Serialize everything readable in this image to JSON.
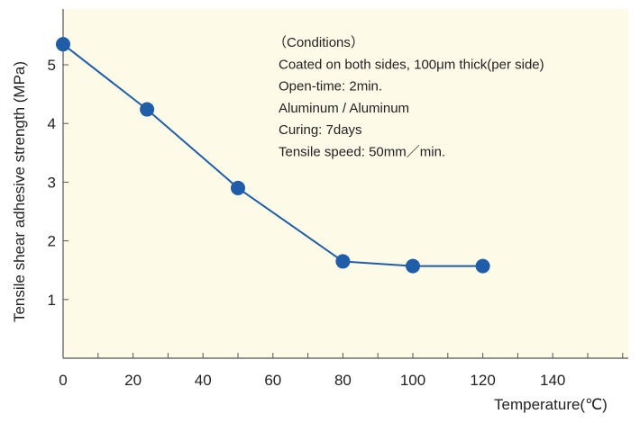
{
  "chart_data": {
    "type": "line",
    "xlabel": "Temperature(℃)",
    "ylabel": "Tensile shear adhesive strength (MPa)",
    "xlim": [
      0,
      160
    ],
    "ylim": [
      0,
      6
    ],
    "x_ticks": [
      "0",
      "20",
      "40",
      "60",
      "80",
      "100",
      "120",
      "140"
    ],
    "y_ticks": [
      "1",
      "2",
      "3",
      "4",
      "5"
    ],
    "series": [
      {
        "x": [
          0,
          24,
          50,
          80,
          100,
          120
        ],
        "y": [
          5.35,
          4.24,
          2.9,
          1.65,
          1.57,
          1.57
        ],
        "color": "#1f5da8"
      }
    ],
    "annotation": [
      "（Conditions）",
      "Coated on both sides, 100μm thick(per side)",
      "Open-time: 2min.",
      "Aluminum / Aluminum",
      "Curing: 7days",
      "Tensile speed: 50mm／min."
    ],
    "grid": false,
    "background_color": "#fdfae8"
  }
}
